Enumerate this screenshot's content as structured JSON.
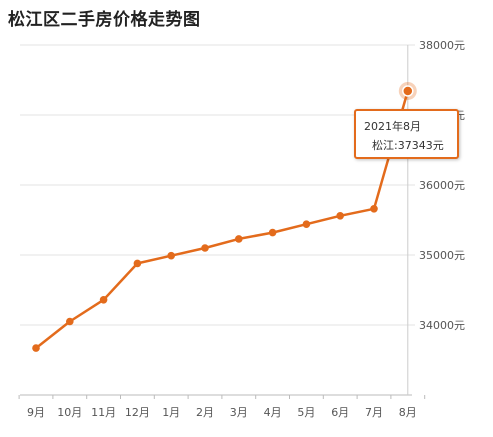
{
  "chart_data": {
    "type": "line",
    "title": "松江区二手房价格走势图",
    "categories": [
      "9月",
      "10月",
      "11月",
      "12月",
      "1月",
      "2月",
      "3月",
      "4月",
      "5月",
      "6月",
      "7月",
      "8月"
    ],
    "series": [
      {
        "name": "松江",
        "values": [
          33670,
          34050,
          34360,
          34880,
          34990,
          35100,
          35230,
          35320,
          35440,
          35560,
          35660,
          37343
        ]
      }
    ],
    "yticks": [
      34000,
      35000,
      36000,
      37000,
      38000
    ],
    "ytick_labels": [
      "34000元",
      "35000元",
      "36000元",
      "37000元",
      "38000元"
    ],
    "ylim": [
      33000,
      38000
    ],
    "xlabel": "",
    "ylabel": "",
    "grid": true,
    "legend": "none",
    "line_color": "#e36b1c",
    "tooltip": {
      "date": "2021年8月",
      "value": "松江:37343元"
    }
  }
}
